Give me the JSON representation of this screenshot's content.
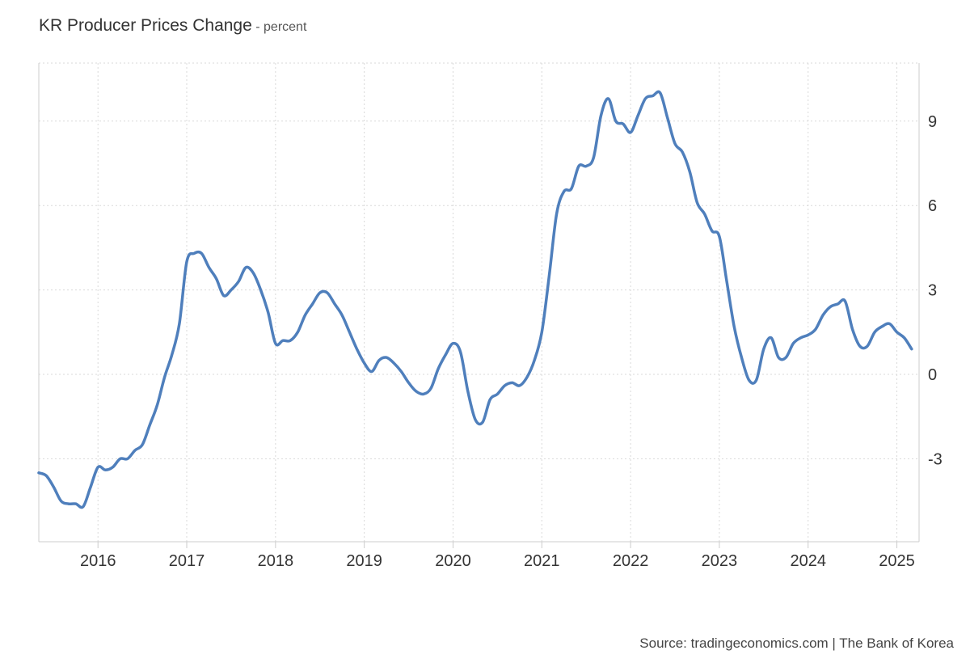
{
  "chart_data": {
    "type": "line",
    "title": "KR Producer Prices Change",
    "subtitle": "percent",
    "source": "Source: tradingeconomics.com | The Bank of Korea",
    "x_ticks": [
      "2016",
      "2017",
      "2018",
      "2019",
      "2020",
      "2021",
      "2022",
      "2023",
      "2024",
      "2025"
    ],
    "y_ticks": [
      -3,
      0,
      3,
      6,
      9
    ],
    "y_tick_labels": [
      "-3",
      "0",
      "3",
      "6",
      "9"
    ],
    "xlim": [
      "2015-05",
      "2025-04"
    ],
    "ylim": [
      -6,
      11
    ],
    "grid": true,
    "line_color": "#4f7fbc",
    "series": [
      {
        "values": [
          [
            "2015-05",
            -3.5
          ],
          [
            "2015-06",
            -3.6
          ],
          [
            "2015-07",
            -4.0
          ],
          [
            "2015-08",
            -4.5
          ],
          [
            "2015-09",
            -4.6
          ],
          [
            "2015-10",
            -4.6
          ],
          [
            "2015-11",
            -4.7
          ],
          [
            "2015-12",
            -4.0
          ],
          [
            "2016-01",
            -3.3
          ],
          [
            "2016-02",
            -3.4
          ],
          [
            "2016-03",
            -3.3
          ],
          [
            "2016-04",
            -3.0
          ],
          [
            "2016-05",
            -3.0
          ],
          [
            "2016-06",
            -2.7
          ],
          [
            "2016-07",
            -2.5
          ],
          [
            "2016-08",
            -1.8
          ],
          [
            "2016-09",
            -1.1
          ],
          [
            "2016-10",
            -0.1
          ],
          [
            "2016-11",
            0.7
          ],
          [
            "2016-12",
            1.8
          ],
          [
            "2017-01",
            4.0
          ],
          [
            "2017-02",
            4.3
          ],
          [
            "2017-03",
            4.3
          ],
          [
            "2017-04",
            3.8
          ],
          [
            "2017-05",
            3.4
          ],
          [
            "2017-06",
            2.8
          ],
          [
            "2017-07",
            3.0
          ],
          [
            "2017-08",
            3.3
          ],
          [
            "2017-09",
            3.8
          ],
          [
            "2017-10",
            3.6
          ],
          [
            "2017-11",
            3.0
          ],
          [
            "2017-12",
            2.2
          ],
          [
            "2018-01",
            1.1
          ],
          [
            "2018-02",
            1.2
          ],
          [
            "2018-03",
            1.2
          ],
          [
            "2018-04",
            1.5
          ],
          [
            "2018-05",
            2.1
          ],
          [
            "2018-06",
            2.5
          ],
          [
            "2018-07",
            2.9
          ],
          [
            "2018-08",
            2.9
          ],
          [
            "2018-09",
            2.5
          ],
          [
            "2018-10",
            2.1
          ],
          [
            "2018-11",
            1.5
          ],
          [
            "2018-12",
            0.9
          ],
          [
            "2019-01",
            0.4
          ],
          [
            "2019-02",
            0.1
          ],
          [
            "2019-03",
            0.5
          ],
          [
            "2019-04",
            0.6
          ],
          [
            "2019-05",
            0.4
          ],
          [
            "2019-06",
            0.1
          ],
          [
            "2019-07",
            -0.3
          ],
          [
            "2019-08",
            -0.6
          ],
          [
            "2019-09",
            -0.7
          ],
          [
            "2019-10",
            -0.5
          ],
          [
            "2019-11",
            0.2
          ],
          [
            "2019-12",
            0.7
          ],
          [
            "2020-01",
            1.1
          ],
          [
            "2020-02",
            0.8
          ],
          [
            "2020-03",
            -0.6
          ],
          [
            "2020-04",
            -1.6
          ],
          [
            "2020-05",
            -1.7
          ],
          [
            "2020-06",
            -0.9
          ],
          [
            "2020-07",
            -0.7
          ],
          [
            "2020-08",
            -0.4
          ],
          [
            "2020-09",
            -0.3
          ],
          [
            "2020-10",
            -0.4
          ],
          [
            "2020-11",
            -0.1
          ],
          [
            "2020-12",
            0.5
          ],
          [
            "2021-01",
            1.5
          ],
          [
            "2021-02",
            3.5
          ],
          [
            "2021-03",
            5.7
          ],
          [
            "2021-04",
            6.5
          ],
          [
            "2021-05",
            6.6
          ],
          [
            "2021-06",
            7.4
          ],
          [
            "2021-07",
            7.4
          ],
          [
            "2021-08",
            7.7
          ],
          [
            "2021-09",
            9.2
          ],
          [
            "2021-10",
            9.8
          ],
          [
            "2021-11",
            9.0
          ],
          [
            "2021-12",
            8.9
          ],
          [
            "2022-01",
            8.6
          ],
          [
            "2022-02",
            9.2
          ],
          [
            "2022-03",
            9.8
          ],
          [
            "2022-04",
            9.9
          ],
          [
            "2022-05",
            10.0
          ],
          [
            "2022-06",
            9.1
          ],
          [
            "2022-07",
            8.2
          ],
          [
            "2022-08",
            7.9
          ],
          [
            "2022-09",
            7.2
          ],
          [
            "2022-10",
            6.1
          ],
          [
            "2022-11",
            5.7
          ],
          [
            "2022-12",
            5.1
          ],
          [
            "2023-01",
            4.9
          ],
          [
            "2023-02",
            3.3
          ],
          [
            "2023-03",
            1.7
          ],
          [
            "2023-04",
            0.6
          ],
          [
            "2023-05",
            -0.2
          ],
          [
            "2023-06",
            -0.2
          ],
          [
            "2023-07",
            0.9
          ],
          [
            "2023-08",
            1.3
          ],
          [
            "2023-09",
            0.6
          ],
          [
            "2023-10",
            0.6
          ],
          [
            "2023-11",
            1.1
          ],
          [
            "2023-12",
            1.3
          ],
          [
            "2024-01",
            1.4
          ],
          [
            "2024-02",
            1.6
          ],
          [
            "2024-03",
            2.1
          ],
          [
            "2024-04",
            2.4
          ],
          [
            "2024-05",
            2.5
          ],
          [
            "2024-06",
            2.6
          ],
          [
            "2024-07",
            1.6
          ],
          [
            "2024-08",
            1.0
          ],
          [
            "2024-09",
            1.0
          ],
          [
            "2024-10",
            1.5
          ],
          [
            "2024-11",
            1.7
          ],
          [
            "2024-12",
            1.8
          ],
          [
            "2025-01",
            1.5
          ],
          [
            "2025-02",
            1.3
          ],
          [
            "2025-03",
            0.9
          ]
        ]
      }
    ]
  }
}
